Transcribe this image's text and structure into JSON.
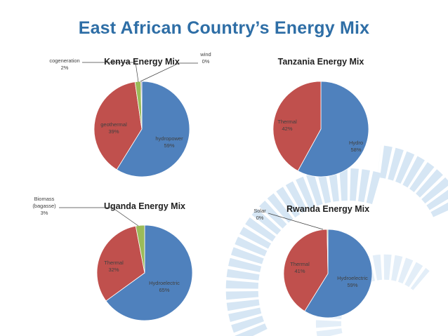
{
  "slide": {
    "title": "East African Country’s Energy Mix"
  },
  "chart_data": [
    {
      "type": "pie",
      "title": "Kenya Energy Mix",
      "slices": [
        {
          "name": "hydropower",
          "value": 59,
          "label": "59%",
          "color": "#4f81bd"
        },
        {
          "name": "geothermal",
          "value": 39,
          "label": "39%",
          "color": "#c0504d"
        },
        {
          "name": "cogeneration",
          "value": 2,
          "label": "2%",
          "color": "#9bbb59"
        },
        {
          "name": "wind",
          "value": 0.3,
          "label": "0%",
          "color": "#8064a2"
        }
      ]
    },
    {
      "type": "pie",
      "title": "Tanzania Energy Mix",
      "slices": [
        {
          "name": "Hydro",
          "value": 58,
          "label": "58%",
          "color": "#4f81bd"
        },
        {
          "name": "Thermal",
          "value": 42,
          "label": "42%",
          "color": "#c0504d"
        }
      ]
    },
    {
      "type": "pie",
      "title": "Uganda Energy Mix",
      "slices": [
        {
          "name": "Hydroelectric",
          "value": 65,
          "label": "65%",
          "color": "#4f81bd"
        },
        {
          "name": "Thermal",
          "value": 32,
          "label": "32%",
          "color": "#c0504d"
        },
        {
          "name": "Biomass (bagasse)",
          "value": 3,
          "label": "3%",
          "color": "#9bbb59"
        }
      ]
    },
    {
      "type": "pie",
      "title": "Rwanda Energy Mix",
      "slices": [
        {
          "name": "Hydroelectric",
          "value": 59,
          "label": "59%",
          "color": "#4f81bd"
        },
        {
          "name": "Thermal",
          "value": 41,
          "label": "41%",
          "color": "#c0504d"
        },
        {
          "name": "Solar",
          "value": 0.3,
          "label": "0%",
          "color": "#9bbb59"
        }
      ]
    }
  ]
}
